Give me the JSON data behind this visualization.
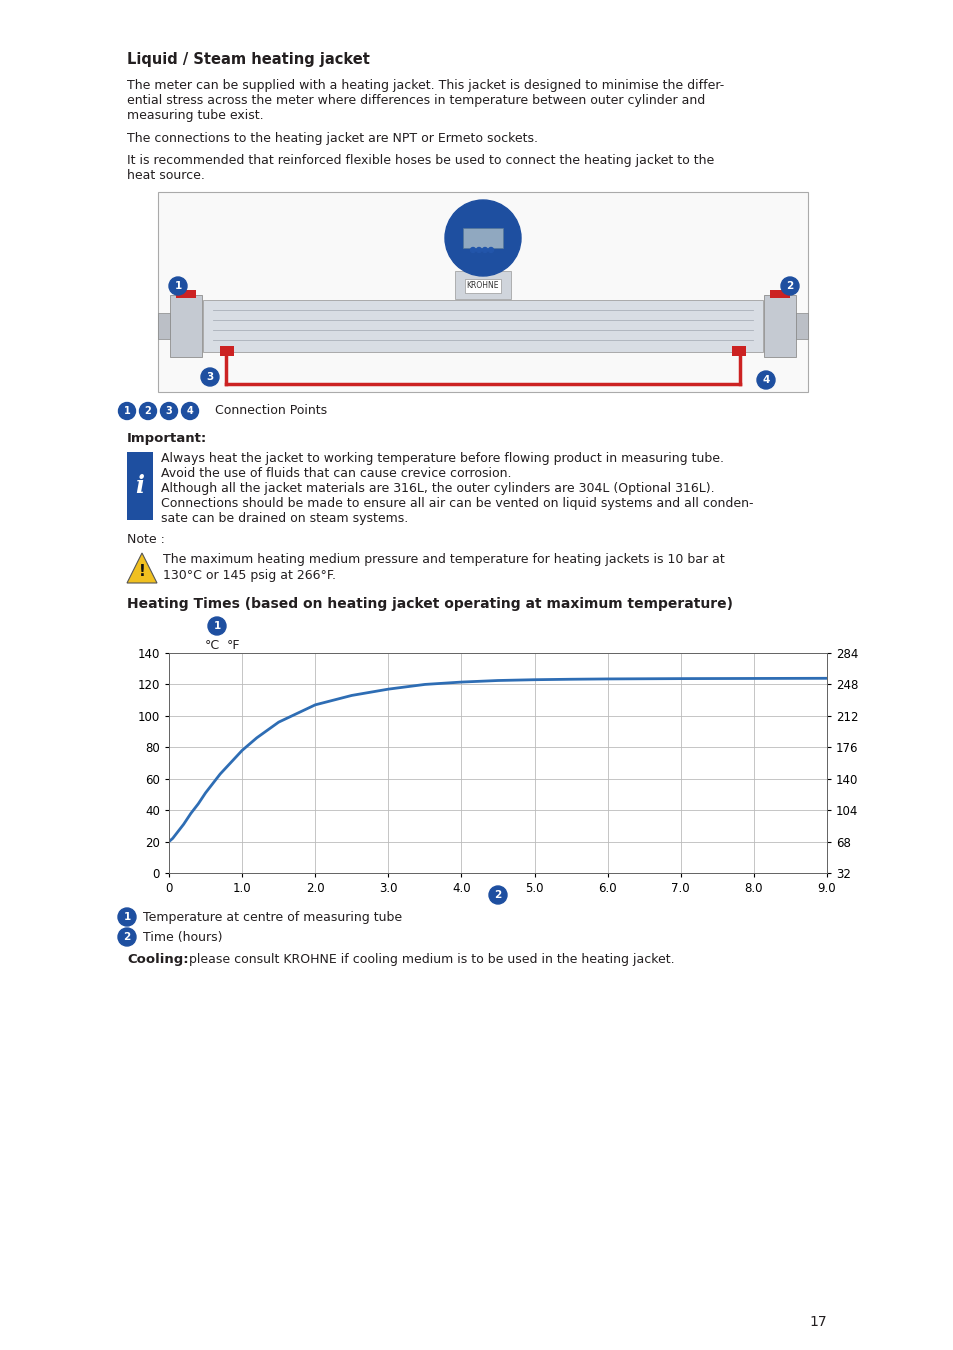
{
  "page_bg": "#ffffff",
  "text_color": "#231f20",
  "blue_color": "#1e4fa0",
  "section_title": "Liquid / Steam heating jacket",
  "para1_lines": [
    "The meter can be supplied with a heating jacket. This jacket is designed to minimise the differ-",
    "ential stress across the meter where differences in temperature between outer cylinder and",
    "measuring tube exist."
  ],
  "para2": "The connections to the heating jacket are NPT or Ermeto sockets.",
  "para3_lines": [
    "It is recommended that reinforced flexible hoses be used to connect the heating jacket to the",
    "heat source."
  ],
  "connection_label": "Connection Points",
  "important_label": "Important:",
  "info_lines": [
    "Always heat the jacket to working temperature before flowing product in measuring tube.",
    "Avoid the use of fluids that can cause crevice corrosion.",
    "Although all the jacket materials are 316L, the outer cylinders are 304L (Optional 316L).",
    "Connections should be made to ensure all air can be vented on liquid systems and all conden-",
    "sate can be drained on steam systems."
  ],
  "note_label": "Note :",
  "warning_line1": "The maximum heating medium pressure and temperature for heating jackets is 10 bar at",
  "warning_line2": "130°C or 145 psig at 266°F.",
  "heating_times_title": "Heating Times (based on heating jacket operating at maximum temperature)",
  "curve_x": [
    0.0,
    0.05,
    0.1,
    0.2,
    0.3,
    0.4,
    0.5,
    0.6,
    0.7,
    0.8,
    1.0,
    1.2,
    1.5,
    2.0,
    2.5,
    3.0,
    3.5,
    4.0,
    4.5,
    5.0,
    5.5,
    6.0,
    6.5,
    7.0,
    7.5,
    8.0,
    8.5,
    9.0
  ],
  "curve_y_c": [
    20,
    22,
    25,
    31,
    38,
    44,
    51,
    57,
    63,
    68,
    78,
    86,
    96,
    107,
    113,
    117,
    120,
    121.5,
    122.5,
    123,
    123.3,
    123.5,
    123.6,
    123.7,
    123.75,
    123.8,
    123.85,
    123.9
  ],
  "x_ticks": [
    0,
    1.0,
    2.0,
    3.0,
    4.0,
    5.0,
    6.0,
    7.0,
    8.0,
    9.0
  ],
  "x_tick_labels": [
    "0",
    "1.0",
    "2.0",
    "3.0",
    "4.0",
    "5.0",
    "6.0",
    "7.0",
    "8.0",
    "9.0"
  ],
  "y_ticks_c": [
    0,
    20,
    40,
    60,
    80,
    100,
    120,
    140
  ],
  "y_tick_labels_c": [
    "0",
    "20",
    "40",
    "60",
    "80",
    "100",
    "120",
    "140"
  ],
  "y_tick_labels_f": [
    "32",
    "68",
    "104",
    "140",
    "176",
    "212",
    "248",
    "284"
  ],
  "legend1_label": "Temperature at centre of measuring tube",
  "legend2_label": "Time (hours)",
  "cooling_bold": "Cooling:",
  "cooling_text": " please consult KROHNE if cooling medium is to be used in the heating jacket.",
  "page_number": "17",
  "line_color": "#2e6db4",
  "grid_color": "#bbbbbb"
}
